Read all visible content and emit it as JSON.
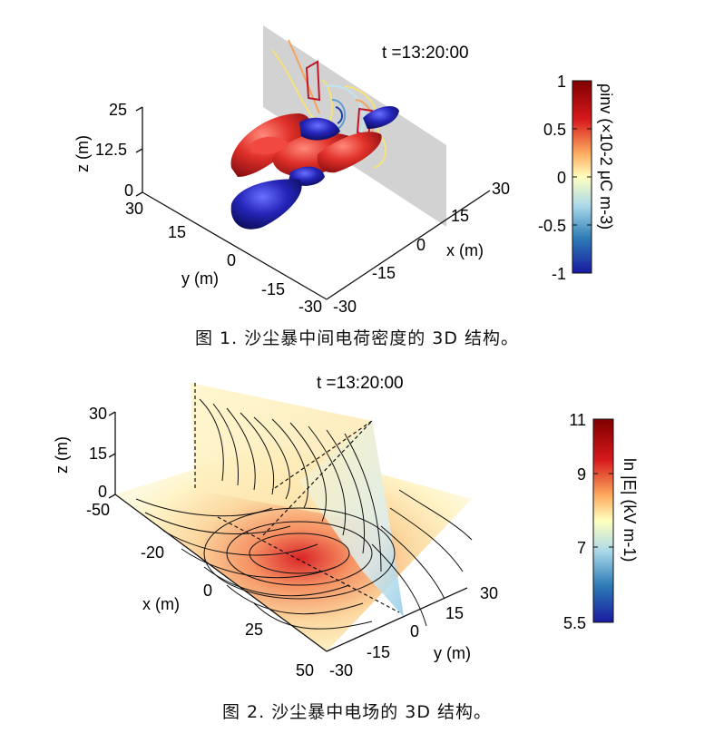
{
  "figure1": {
    "time_label": "t =13:20:00",
    "axes": {
      "z_label": "z (m)",
      "z_ticks": [
        "0",
        "12.5",
        "25"
      ],
      "y_label": "y (m)",
      "y_ticks": [
        "30",
        "15",
        "0",
        "-15",
        "-30"
      ],
      "x_label": "x (m)",
      "x_ticks": [
        "30",
        "15",
        "0",
        "-15",
        "-30"
      ]
    },
    "colorbar": {
      "title": "ρinv (×10-2 μC m-3)",
      "ticks": [
        "1",
        "0.5",
        "0",
        "-0.5",
        "-1"
      ],
      "colors": [
        "#7f0000",
        "#d7191c",
        "#fdae61",
        "#ffffbf",
        "#abd9e9",
        "#2c7bb6",
        "#1a1aa0"
      ]
    },
    "caption": "图 1. 沙尘暴中间电荷密度的 3D 结构。"
  },
  "figure2": {
    "time_label": "t =13:20:00",
    "axes": {
      "z_label": "z (m)",
      "z_ticks": [
        "30",
        "15",
        "0"
      ],
      "x_label": "x (m)",
      "x_ticks": [
        "-50",
        "-20",
        "0",
        "25",
        "50"
      ],
      "y_label": "y (m)",
      "y_ticks": [
        "30",
        "15",
        "0",
        "-15",
        "-30"
      ]
    },
    "colorbar": {
      "title": "ln |E| (kV m-1)",
      "ticks": [
        "11",
        "9",
        "7",
        "5.5"
      ],
      "colors": [
        "#7f0000",
        "#d7191c",
        "#fdae61",
        "#ffffbf",
        "#abd9e9",
        "#2c7bb6",
        "#1a1aa0"
      ]
    },
    "caption": "图 2. 沙尘暴中电场的 3D 结构。"
  }
}
